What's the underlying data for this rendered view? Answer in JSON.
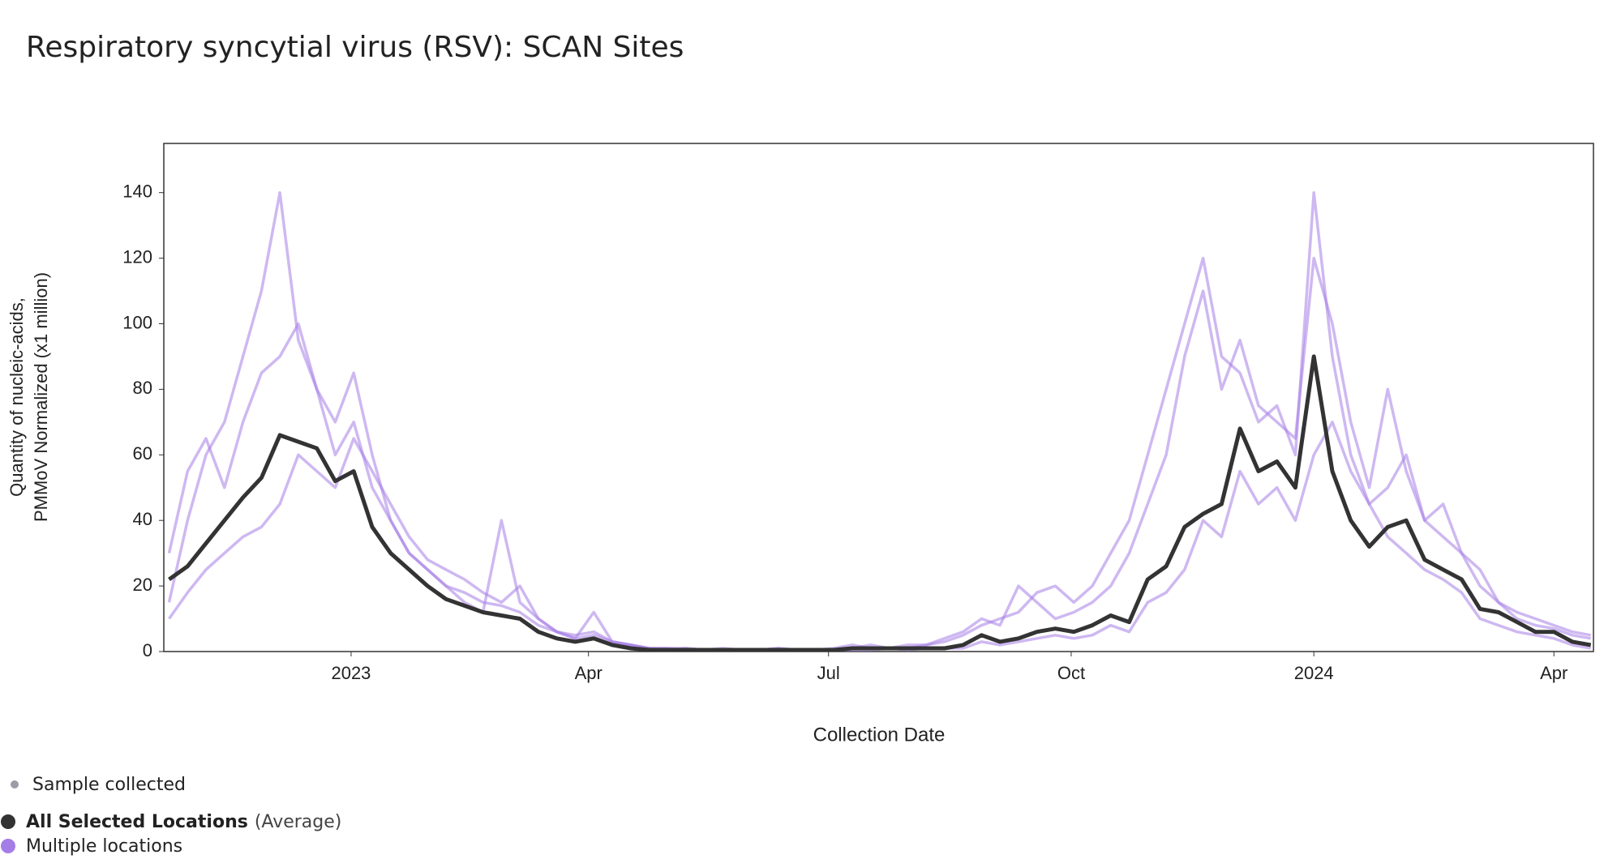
{
  "chart_data": {
    "type": "line",
    "title": "Respiratory syncytial virus (RSV): SCAN Sites",
    "x_label": "Collection Date",
    "y_label": [
      "Quantity of nucleic-acids,",
      "PMMoV Normalized (x1 million)"
    ],
    "xlim": [
      "2022-10-22",
      "2024-04-16"
    ],
    "xticks": [
      {
        "value": "2023-01-01",
        "label": "2023"
      },
      {
        "value": "2023-04-01",
        "label": "Apr"
      },
      {
        "value": "2023-07-01",
        "label": "Jul"
      },
      {
        "value": "2023-10-01",
        "label": "Oct"
      },
      {
        "value": "2024-01-01",
        "label": "2024"
      },
      {
        "value": "2024-04-01",
        "label": "Apr"
      }
    ],
    "ylim": [
      0,
      155
    ],
    "yticks": [
      0,
      20,
      40,
      60,
      80,
      100,
      120,
      140
    ],
    "x": [
      "2022-10-24",
      "2022-10-31",
      "2022-11-07",
      "2022-11-14",
      "2022-11-21",
      "2022-11-28",
      "2022-12-05",
      "2022-12-12",
      "2022-12-19",
      "2022-12-26",
      "2023-01-02",
      "2023-01-09",
      "2023-01-16",
      "2023-01-23",
      "2023-01-30",
      "2023-02-06",
      "2023-02-13",
      "2023-02-20",
      "2023-02-27",
      "2023-03-06",
      "2023-03-13",
      "2023-03-20",
      "2023-03-27",
      "2023-04-03",
      "2023-04-10",
      "2023-04-17",
      "2023-04-24",
      "2023-05-01",
      "2023-05-08",
      "2023-05-15",
      "2023-05-22",
      "2023-05-29",
      "2023-06-05",
      "2023-06-12",
      "2023-06-19",
      "2023-06-26",
      "2023-07-03",
      "2023-07-10",
      "2023-07-17",
      "2023-07-24",
      "2023-07-31",
      "2023-08-07",
      "2023-08-14",
      "2023-08-21",
      "2023-08-28",
      "2023-09-04",
      "2023-09-11",
      "2023-09-18",
      "2023-09-25",
      "2023-10-02",
      "2023-10-09",
      "2023-10-16",
      "2023-10-23",
      "2023-10-30",
      "2023-11-06",
      "2023-11-13",
      "2023-11-20",
      "2023-11-27",
      "2023-12-04",
      "2023-12-11",
      "2023-12-18",
      "2023-12-25",
      "2024-01-01",
      "2024-01-08",
      "2024-01-15",
      "2024-01-22",
      "2024-01-29",
      "2024-02-05",
      "2024-02-12",
      "2024-02-19",
      "2024-02-26",
      "2024-03-04",
      "2024-03-11",
      "2024-03-18",
      "2024-03-25",
      "2024-04-01",
      "2024-04-08",
      "2024-04-15"
    ],
    "sample_label": "Sample collected",
    "sample_color": "#9e9aa6",
    "series": [
      {
        "name": "All Selected Locations",
        "name_suffix": "(Average)",
        "color": "#333333",
        "values": [
          22,
          26,
          33,
          40,
          47,
          53,
          66,
          64,
          62,
          52,
          55,
          38,
          30,
          25,
          20,
          16,
          14,
          12,
          11,
          10,
          6,
          4,
          3,
          4,
          2,
          1,
          0.5,
          0.5,
          0.5,
          0.5,
          0.5,
          0.5,
          0.5,
          0.5,
          0.5,
          0.5,
          0.5,
          1,
          1,
          1,
          1,
          1,
          1,
          2,
          5,
          3,
          4,
          6,
          7,
          6,
          8,
          11,
          9,
          22,
          26,
          38,
          42,
          45,
          68,
          55,
          58,
          50,
          90,
          55,
          40,
          32,
          38,
          40,
          28,
          25,
          22,
          13,
          12,
          9,
          6,
          6,
          3,
          2
        ]
      }
    ],
    "locations": {
      "name": "Multiple locations",
      "color": "#a57de6",
      "series": [
        {
          "values": [
            15,
            40,
            60,
            70,
            90,
            110,
            140,
            95,
            80,
            60,
            70,
            50,
            40,
            30,
            25,
            20,
            18,
            15,
            14,
            12,
            8,
            6,
            5,
            6,
            3,
            2,
            1,
            1,
            1,
            0.5,
            0.5,
            0.5,
            0.5,
            1,
            0.5,
            0.5,
            0.5,
            1,
            2,
            1,
            1,
            2,
            3,
            5,
            8,
            10,
            12,
            18,
            20,
            15,
            20,
            30,
            40,
            60,
            80,
            100,
            120,
            90,
            85,
            70,
            75,
            60,
            140,
            90,
            60,
            45,
            50,
            60,
            40,
            35,
            30,
            20,
            15,
            10,
            8,
            7,
            5,
            4
          ]
        },
        {
          "values": [
            10,
            18,
            25,
            30,
            35,
            38,
            45,
            60,
            55,
            50,
            65,
            55,
            45,
            35,
            28,
            25,
            22,
            18,
            15,
            20,
            10,
            6,
            4,
            5,
            3,
            2,
            1,
            1,
            0.5,
            0.5,
            0.5,
            0.5,
            0.5,
            0.5,
            0.5,
            0.5,
            0.5,
            0.5,
            0.5,
            1,
            0.5,
            1,
            1,
            1,
            3,
            2,
            3,
            4,
            5,
            4,
            5,
            8,
            6,
            15,
            18,
            25,
            40,
            35,
            55,
            45,
            50,
            40,
            60,
            70,
            55,
            45,
            35,
            30,
            25,
            22,
            18,
            10,
            8,
            6,
            5,
            4,
            2,
            1
          ]
        },
        {
          "values": [
            30,
            55,
            65,
            50,
            70,
            85,
            90,
            100,
            80,
            70,
            85,
            60,
            40,
            30,
            25,
            20,
            15,
            12,
            40,
            15,
            10,
            6,
            4,
            12,
            3,
            2,
            1,
            0.5,
            1,
            0.5,
            1,
            0.5,
            0.5,
            1,
            0.5,
            0.5,
            1,
            2,
            1,
            1,
            2,
            2,
            4,
            6,
            10,
            8,
            20,
            15,
            10,
            12,
            15,
            20,
            30,
            45,
            60,
            90,
            110,
            80,
            95,
            75,
            70,
            65,
            120,
            100,
            70,
            50,
            80,
            55,
            40,
            45,
            30,
            25,
            15,
            12,
            10,
            8,
            6,
            5
          ]
        }
      ]
    }
  }
}
